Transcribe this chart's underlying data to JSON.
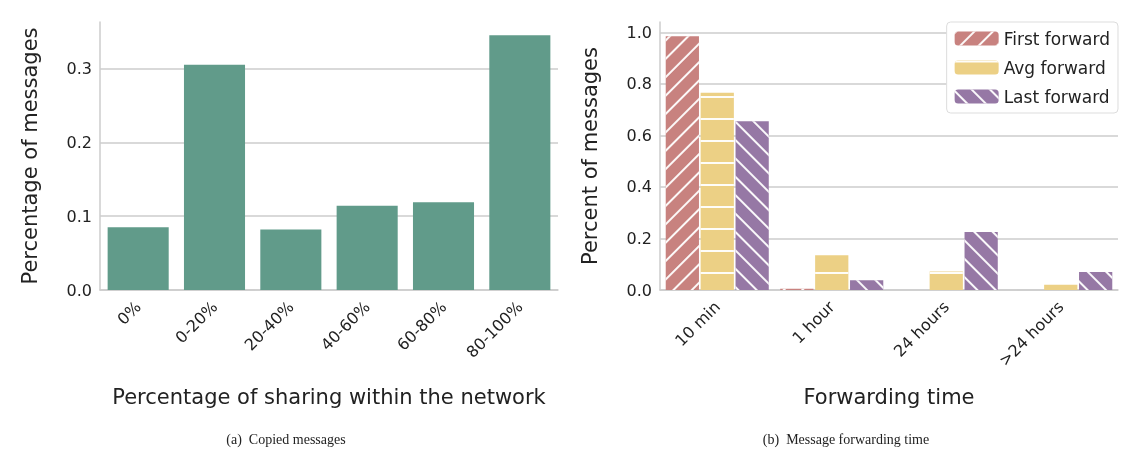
{
  "chart_data": [
    {
      "type": "bar",
      "categories": [
        "0%",
        "0-20%",
        "20-40%",
        "40-60%",
        "60-80%",
        "80-100%"
      ],
      "values": [
        0.085,
        0.305,
        0.082,
        0.114,
        0.119,
        0.345
      ],
      "color": "#619b8a",
      "xlabel": "Percentage of sharing within the network",
      "ylabel": "Percentage of messages",
      "ylim": [
        0,
        0.363
      ],
      "yticks": [
        {
          "value": 0,
          "label": "0.0"
        },
        {
          "value": 0.1,
          "label": "0.1"
        },
        {
          "value": 0.2,
          "label": "0.2"
        },
        {
          "value": 0.3,
          "label": "0.3"
        }
      ],
      "grid": "y",
      "annotations": [
        "(a)  Copied messages"
      ]
    },
    {
      "type": "bar",
      "categories": [
        "10 min",
        "1 hour",
        "24 hours",
        ">24 hours"
      ],
      "series": [
        {
          "name": "First forward",
          "color": "#c8827f",
          "values": [
            0.985,
            0.005,
            0,
            0
          ]
        },
        {
          "name": "Avg forward",
          "color": "#ecd085",
          "values": [
            0.765,
            0.135,
            0.072,
            0.02
          ]
        },
        {
          "name": "Last forward",
          "color": "#9678a5",
          "values": [
            0.655,
            0.038,
            0.225,
            0.07
          ]
        }
      ],
      "xlabel": "Forwarding time",
      "ylabel": "Percent of messages",
      "ylim": [
        0,
        1.04
      ],
      "yticks": [
        {
          "value": 0,
          "label": "0.0"
        },
        {
          "value": 0.2,
          "label": "0.2"
        },
        {
          "value": 0.4,
          "label": "0.4"
        },
        {
          "value": 0.6,
          "label": "0.6"
        },
        {
          "value": 0.8,
          "label": "0.8"
        },
        {
          "value": 1,
          "label": "1.0"
        }
      ],
      "grid": "y",
      "legend": "top right",
      "annotations": [
        "(b)  Message forwarding time"
      ]
    }
  ]
}
